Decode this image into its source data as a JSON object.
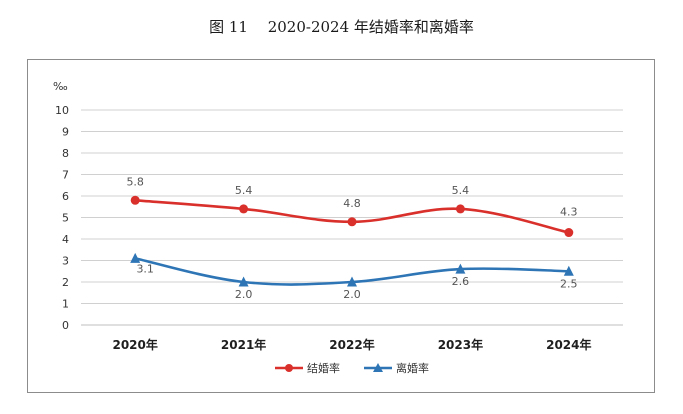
{
  "title": "图 11　 2020-2024 年结婚率和离婚率",
  "chart_data": {
    "type": "line",
    "title": "图 11　 2020-2024 年结婚率和离婚率",
    "ylabel": "‰",
    "xlabel": "",
    "categories": [
      "2020年",
      "2021年",
      "2022年",
      "2023年",
      "2024年"
    ],
    "ylim": [
      0,
      10
    ],
    "yticks": [
      "0",
      "1",
      "2",
      "3",
      "4",
      "5",
      "6",
      "7",
      "8",
      "9",
      "10"
    ],
    "grid": true,
    "legend_position": "bottom",
    "series": [
      {
        "name": "结婚率",
        "values": [
          5.8,
          5.4,
          4.8,
          5.4,
          4.3
        ],
        "labels": [
          "5.8",
          "5.4",
          "4.8",
          "5.4",
          "4.3"
        ],
        "color": "#d9302c",
        "marker": "circle"
      },
      {
        "name": "离婚率",
        "values": [
          3.1,
          2.0,
          2.0,
          2.6,
          2.5
        ],
        "labels": [
          "3.1",
          "2.0",
          "2.0",
          "2.6",
          "2.5"
        ],
        "color": "#2e75b6",
        "marker": "triangle"
      }
    ]
  }
}
